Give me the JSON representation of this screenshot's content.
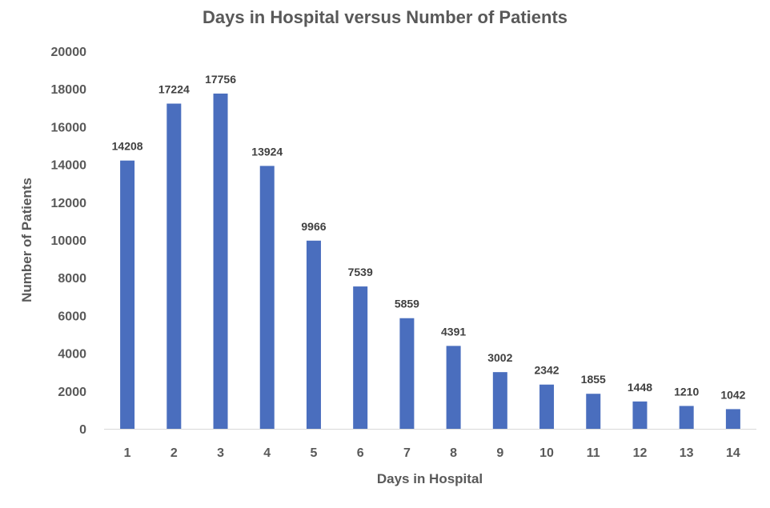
{
  "chart_data": {
    "type": "bar",
    "title": "Days in Hospital versus Number of Patients",
    "xlabel": "Days in Hospital",
    "ylabel": "Number of Patients",
    "categories": [
      "1",
      "2",
      "3",
      "4",
      "5",
      "6",
      "7",
      "8",
      "9",
      "10",
      "11",
      "12",
      "13",
      "14"
    ],
    "values": [
      14208,
      17224,
      17756,
      13924,
      9966,
      7539,
      5859,
      4391,
      3002,
      2342,
      1855,
      1448,
      1210,
      1042
    ],
    "ylim": [
      0,
      20000
    ],
    "yticks": [
      0,
      2000,
      4000,
      6000,
      8000,
      10000,
      12000,
      14000,
      16000,
      18000,
      20000
    ],
    "grid": false,
    "legend": "none",
    "bar_color": "#4A6EBE"
  }
}
